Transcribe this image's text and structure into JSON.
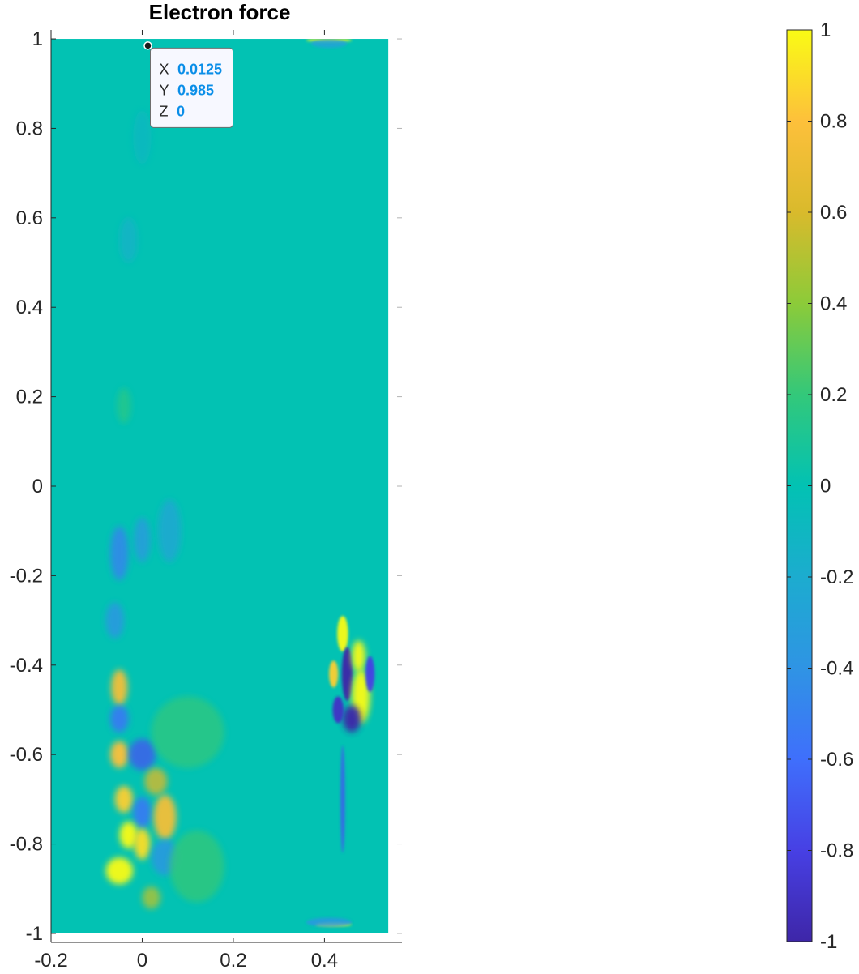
{
  "chart_data": {
    "type": "heatmap",
    "title": "Electron force",
    "xlabel": "",
    "ylabel": "",
    "xlim": [
      -0.2,
      0.57
    ],
    "ylim": [
      -1.02,
      1.02
    ],
    "x_ticks": [
      -0.2,
      0,
      0.2,
      0.4
    ],
    "x_tick_labels": [
      "-0.2",
      "0",
      "0.2",
      "0.4"
    ],
    "y_ticks": [
      1,
      0.8,
      0.6,
      0.4,
      0.2,
      0,
      -0.2,
      -0.4,
      -0.6,
      -0.8,
      -1
    ],
    "y_tick_labels": [
      "1",
      "0.8",
      "0.6",
      "0.4",
      "0.2",
      "0",
      "-0.2",
      "-0.4",
      "-0.6",
      "-0.8",
      "-1"
    ],
    "field_extent": {
      "x": [
        -0.2,
        0.54
      ],
      "y": [
        -1.0,
        1.0
      ]
    },
    "background_value": 0,
    "colormap": "parula",
    "colormap_stops": [
      "#3e26a8",
      "#4740e4",
      "#3f6ffc",
      "#2f94e4",
      "#1caccf",
      "#02c2b3",
      "#33c87a",
      "#8ccb39",
      "#d9ba2c",
      "#fdc03b",
      "#f9fb15"
    ],
    "colorbar": {
      "location": "right",
      "clim": [
        -1,
        1
      ],
      "ticks": [
        1,
        0.8,
        0.6,
        0.4,
        0.2,
        0,
        -0.2,
        -0.4,
        -0.6,
        -0.8,
        -1
      ],
      "tick_labels": [
        "1",
        "0.8",
        "0.6",
        "0.4",
        "0.2",
        "0",
        "-0.2",
        "-0.4",
        "-0.6",
        "-0.8",
        "-1"
      ]
    },
    "features": [
      {
        "x": -0.05,
        "y": -0.15,
        "rx": 0.02,
        "ry": 0.06,
        "value": -0.5
      },
      {
        "x": 0.0,
        "y": -0.12,
        "rx": 0.018,
        "ry": 0.05,
        "value": -0.35
      },
      {
        "x": 0.06,
        "y": -0.1,
        "rx": 0.025,
        "ry": 0.07,
        "value": -0.25
      },
      {
        "x": -0.04,
        "y": 0.18,
        "rx": 0.015,
        "ry": 0.04,
        "value": 0.15
      },
      {
        "x": -0.03,
        "y": 0.55,
        "rx": 0.02,
        "ry": 0.05,
        "value": -0.15
      },
      {
        "x": 0.0,
        "y": 0.78,
        "rx": 0.02,
        "ry": 0.06,
        "value": -0.1
      },
      {
        "x": -0.06,
        "y": -0.3,
        "rx": 0.02,
        "ry": 0.04,
        "value": -0.4
      },
      {
        "x": -0.05,
        "y": -0.45,
        "rx": 0.018,
        "ry": 0.04,
        "value": 0.75
      },
      {
        "x": -0.05,
        "y": -0.52,
        "rx": 0.02,
        "ry": 0.03,
        "value": -0.6
      },
      {
        "x": -0.05,
        "y": -0.6,
        "rx": 0.02,
        "ry": 0.03,
        "value": 0.8
      },
      {
        "x": 0.0,
        "y": -0.6,
        "rx": 0.03,
        "ry": 0.035,
        "value": -0.7
      },
      {
        "x": 0.03,
        "y": -0.66,
        "rx": 0.025,
        "ry": 0.03,
        "value": 0.6
      },
      {
        "x": -0.04,
        "y": -0.7,
        "rx": 0.02,
        "ry": 0.03,
        "value": 0.85
      },
      {
        "x": 0.0,
        "y": -0.73,
        "rx": 0.02,
        "ry": 0.035,
        "value": -0.6
      },
      {
        "x": 0.05,
        "y": -0.74,
        "rx": 0.025,
        "ry": 0.05,
        "value": 0.75
      },
      {
        "x": -0.03,
        "y": -0.78,
        "rx": 0.02,
        "ry": 0.03,
        "value": 1.0
      },
      {
        "x": 0.0,
        "y": -0.8,
        "rx": 0.018,
        "ry": 0.035,
        "value": 0.9
      },
      {
        "x": -0.05,
        "y": -0.86,
        "rx": 0.03,
        "ry": 0.03,
        "value": 1.0
      },
      {
        "x": 0.05,
        "y": -0.83,
        "rx": 0.03,
        "ry": 0.04,
        "value": -0.4
      },
      {
        "x": 0.02,
        "y": -0.92,
        "rx": 0.02,
        "ry": 0.025,
        "value": 0.5
      },
      {
        "x": 0.12,
        "y": -0.85,
        "rx": 0.06,
        "ry": 0.08,
        "value": 0.2
      },
      {
        "x": 0.1,
        "y": -0.55,
        "rx": 0.08,
        "ry": 0.08,
        "value": 0.18
      },
      {
        "x": 0.44,
        "y": -0.33,
        "rx": 0.012,
        "ry": 0.04,
        "value": 1.0
      },
      {
        "x": 0.45,
        "y": -0.42,
        "rx": 0.012,
        "ry": 0.06,
        "value": -1.0
      },
      {
        "x": 0.475,
        "y": -0.38,
        "rx": 0.015,
        "ry": 0.035,
        "value": 1.0
      },
      {
        "x": 0.48,
        "y": -0.47,
        "rx": 0.02,
        "ry": 0.06,
        "value": 1.0
      },
      {
        "x": 0.5,
        "y": -0.42,
        "rx": 0.01,
        "ry": 0.04,
        "value": -0.8
      },
      {
        "x": 0.46,
        "y": -0.52,
        "rx": 0.02,
        "ry": 0.03,
        "value": -1.0
      },
      {
        "x": 0.43,
        "y": -0.5,
        "rx": 0.012,
        "ry": 0.03,
        "value": -0.9
      },
      {
        "x": 0.42,
        "y": -0.42,
        "rx": 0.01,
        "ry": 0.03,
        "value": 0.85
      },
      {
        "x": 0.44,
        "y": -0.7,
        "rx": 0.005,
        "ry": 0.12,
        "value": -0.7
      },
      {
        "x": 0.42,
        "y": -0.98,
        "rx": 0.04,
        "ry": 0.004,
        "value": 1.0
      },
      {
        "x": 0.41,
        "y": -0.975,
        "rx": 0.05,
        "ry": 0.01,
        "value": -0.4
      },
      {
        "x": 0.41,
        "y": 0.997,
        "rx": 0.05,
        "ry": 0.004,
        "value": 1.0
      },
      {
        "x": 0.41,
        "y": 0.99,
        "rx": 0.04,
        "ry": 0.01,
        "value": -0.3
      }
    ],
    "datatip": {
      "x": 0.0125,
      "y": 0.985,
      "z": 0,
      "x_label": "X",
      "y_label": "Y",
      "z_label": "Z",
      "x_text": "0.0125",
      "y_text": "0.985",
      "z_text": "0"
    }
  }
}
